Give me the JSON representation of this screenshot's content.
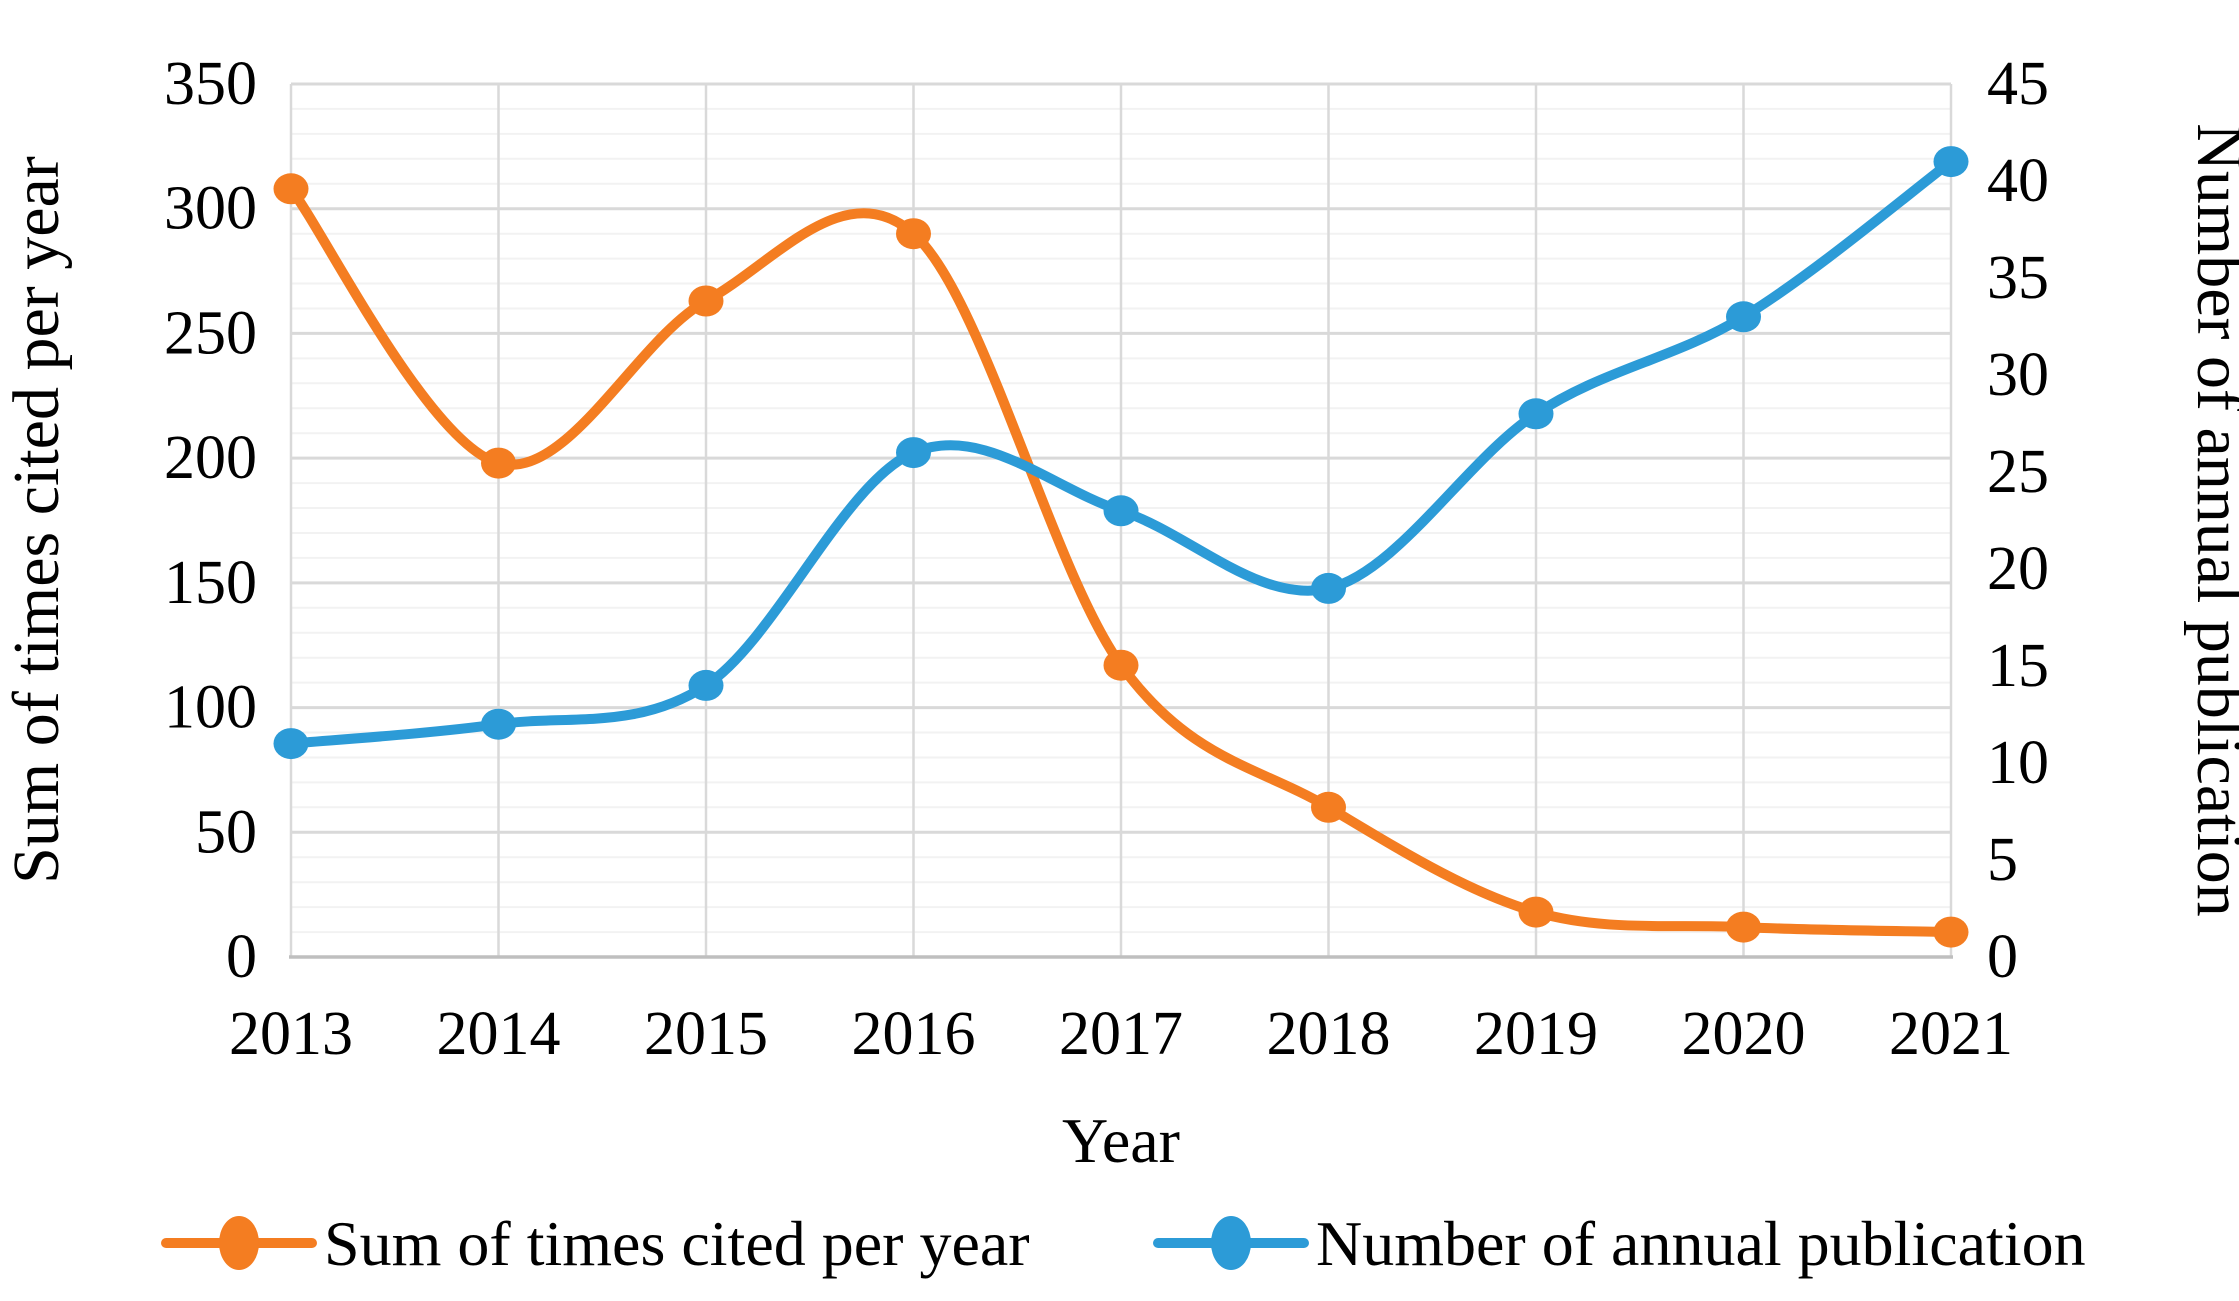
{
  "chart_data": {
    "type": "line",
    "title": "",
    "categories": [
      "2013",
      "2014",
      "2015",
      "2016",
      "2017",
      "2018",
      "2019",
      "2020",
      "2021"
    ],
    "x_axis": {
      "title": "Year"
    },
    "left_axis": {
      "title": "Sum of times cited per year",
      "min": 0,
      "max": 350,
      "major_step": 50,
      "minor_step": 10,
      "tick_labels": [
        "0",
        "50",
        "100",
        "150",
        "200",
        "250",
        "300",
        "350"
      ]
    },
    "right_axis": {
      "title": "Number of annual publication",
      "min": 0,
      "max": 45,
      "major_step": 5,
      "tick_labels": [
        "0",
        "5",
        "10",
        "15",
        "20",
        "25",
        "30",
        "35",
        "40",
        "45"
      ]
    },
    "series": [
      {
        "name": "Sum of times cited per year",
        "axis": "left",
        "color": "#F47D21",
        "marker": "circle",
        "smooth": true,
        "values": [
          308,
          198,
          263,
          290,
          117,
          60,
          18,
          12,
          10
        ]
      },
      {
        "name": "Number of annual publication",
        "axis": "right",
        "color": "#2C9BD7",
        "marker": "circle",
        "smooth": true,
        "values": [
          11,
          12,
          14,
          26,
          23,
          19,
          28,
          33,
          41
        ]
      }
    ],
    "grid": {
      "horizontal_major": true,
      "horizontal_minor": true,
      "vertical": true,
      "major_color": "#D9D9D9",
      "minor_color": "#F2F2F2",
      "axis_line_color": "#BFBFBF",
      "side_line_color": "#D9D9D9"
    },
    "legend": {
      "position": "bottom"
    },
    "background": "#FFFFFF",
    "text_color": "#000000"
  }
}
